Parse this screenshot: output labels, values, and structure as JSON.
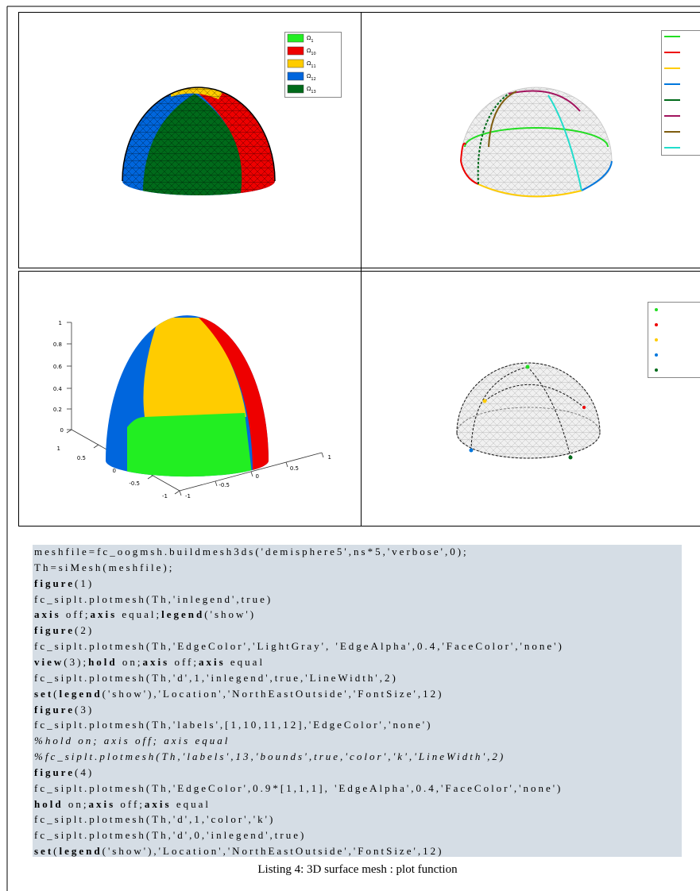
{
  "figures": [
    {
      "legend": [
        {
          "symbol": "Ω",
          "sub": "1"
        },
        {
          "symbol": "Ω",
          "sub": "10"
        },
        {
          "symbol": "Ω",
          "sub": "11"
        },
        {
          "symbol": "Ω",
          "sub": "12"
        },
        {
          "symbol": "Ω",
          "sub": "13"
        }
      ]
    },
    {
      "axes": {
        "z": [
          1,
          0.8,
          0.6,
          0.4,
          0.2,
          0
        ],
        "y": [
          1,
          0.5,
          0,
          -0.5,
          -1
        ],
        "x": [
          -1,
          -0.5,
          0,
          0.5,
          1
        ]
      }
    }
  ],
  "code": {
    "lines": [
      [
        "meshfile=fc_oogmsh.buildmesh3ds('demisphere5',ns*5,'verbose',0);"
      ],
      [
        "Th=siMesh(meshfile);"
      ],
      [
        {
          "bold": "figure"
        },
        "(1)"
      ],
      [
        "fc_siplt.plotmesh(Th,'inlegend',true)"
      ],
      [
        {
          "bold": "axis"
        },
        " off;",
        {
          "bold": "axis"
        },
        " equal;",
        {
          "bold": "legend"
        },
        "('show')"
      ],
      [
        {
          "bold": "figure"
        },
        "(2)"
      ],
      [
        "fc_siplt.plotmesh(Th,'EdgeColor','LightGray', 'EdgeAlpha',0.4,'FaceColor','none')"
      ],
      [
        {
          "bold": "view"
        },
        "(3);",
        {
          "bold": "hold"
        },
        " on;",
        {
          "bold": "axis"
        },
        " off;",
        {
          "bold": "axis"
        },
        " equal"
      ],
      [
        "fc_siplt.plotmesh(Th,'d',1,'inlegend',true,'LineWidth',2)"
      ],
      [
        {
          "bold": "set"
        },
        "(",
        {
          "bold": "legend"
        },
        "('show'),'Location','NorthEastOutside','FontSize',12)"
      ],
      [
        {
          "bold": "figure"
        },
        "(3)"
      ],
      [
        "fc_siplt.plotmesh(Th,'labels',[1,10,11,12],'EdgeColor','none')"
      ],
      [
        {
          "italic": "%hold on; axis off; axis equal"
        }
      ],
      [
        {
          "italic": "%fc_siplt.plotmesh(Th,'labels',13,'bounds',true,'color','k','LineWidth',2)"
        }
      ],
      [
        {
          "bold": "figure"
        },
        "(4)"
      ],
      [
        "fc_siplt.plotmesh(Th,'EdgeColor',0.9*[1,1,1], 'EdgeAlpha',0.4,'FaceColor','none')"
      ],
      [
        {
          "bold": "hold"
        },
        " on;",
        {
          "bold": "axis"
        },
        " off;",
        {
          "bold": "axis"
        },
        " equal"
      ],
      [
        "fc_siplt.plotmesh(Th,'d',1,'color','k')"
      ],
      [
        "fc_siplt.plotmesh(Th,'d',0,'inlegend',true)"
      ],
      [
        {
          "bold": "set"
        },
        "(",
        {
          "bold": "legend"
        },
        "('show'),'Location','NorthEastOutside','FontSize',12)"
      ]
    ]
  },
  "caption": "Listing 4: 3D surface mesh : plot function"
}
